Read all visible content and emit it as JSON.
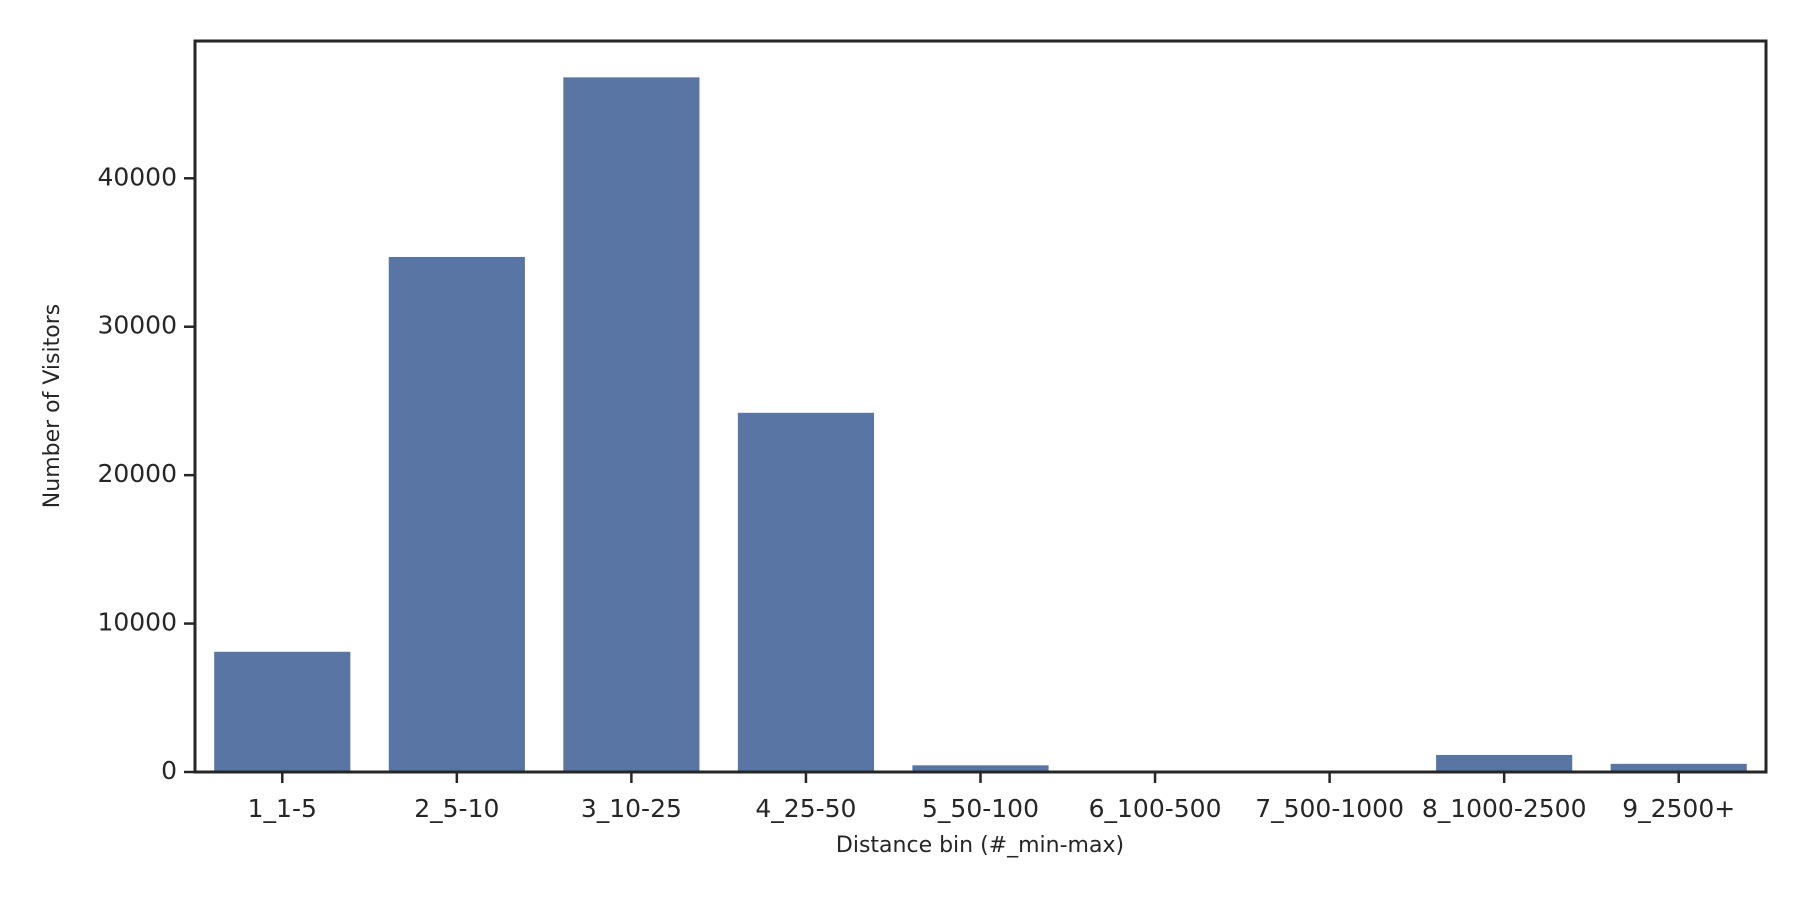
{
  "chart_data": {
    "type": "bar",
    "x_label": "Distance bin (#_min-max)",
    "y_label": "Number of Visitors",
    "categories": [
      "1_1-5",
      "2_5-10",
      "3_10-25",
      "4_25-50",
      "5_50-100",
      "6_100-500",
      "7_500-1000",
      "8_1000-2500",
      "9_2500+"
    ],
    "values": [
      8100,
      34700,
      46800,
      24200,
      450,
      0,
      0,
      1150,
      550
    ],
    "color": "#5975a4",
    "ylim": [
      0,
      49250
    ],
    "yticks": [
      0,
      10000,
      20000,
      30000,
      40000
    ],
    "grid": false
  }
}
